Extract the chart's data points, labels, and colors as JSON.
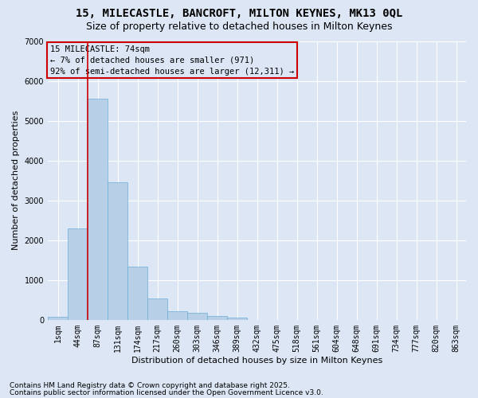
{
  "title": "15, MILECASTLE, BANCROFT, MILTON KEYNES, MK13 0QL",
  "subtitle": "Size of property relative to detached houses in Milton Keynes",
  "xlabel": "Distribution of detached houses by size in Milton Keynes",
  "ylabel": "Number of detached properties",
  "footnote1": "Contains HM Land Registry data © Crown copyright and database right 2025.",
  "footnote2": "Contains public sector information licensed under the Open Government Licence v3.0.",
  "annotation_title": "15 MILECASTLE: 74sqm",
  "annotation_line1": "← 7% of detached houses are smaller (971)",
  "annotation_line2": "92% of semi-detached houses are larger (12,311) →",
  "bar_categories": [
    "1sqm",
    "44sqm",
    "87sqm",
    "131sqm",
    "174sqm",
    "217sqm",
    "260sqm",
    "303sqm",
    "346sqm",
    "389sqm",
    "432sqm",
    "475sqm",
    "518sqm",
    "561sqm",
    "604sqm",
    "648sqm",
    "691sqm",
    "734sqm",
    "777sqm",
    "820sqm",
    "863sqm"
  ],
  "bar_values": [
    75,
    2300,
    5560,
    3460,
    1330,
    530,
    210,
    185,
    95,
    50,
    0,
    0,
    0,
    0,
    0,
    0,
    0,
    0,
    0,
    0,
    0
  ],
  "bar_color": "#b8cfe8",
  "bar_edge_color": "#6baed6",
  "vline_color": "#cc0000",
  "vline_x_index": 1.5,
  "background_color": "#dce6f5",
  "grid_color": "#ffffff",
  "ylim": [
    0,
    7000
  ],
  "yticks": [
    0,
    1000,
    2000,
    3000,
    4000,
    5000,
    6000,
    7000
  ],
  "annotation_box_color": "#cc0000",
  "title_fontsize": 10,
  "subtitle_fontsize": 9,
  "axis_label_fontsize": 8,
  "tick_fontsize": 7,
  "annotation_fontsize": 7.5,
  "footnote_fontsize": 6.5
}
